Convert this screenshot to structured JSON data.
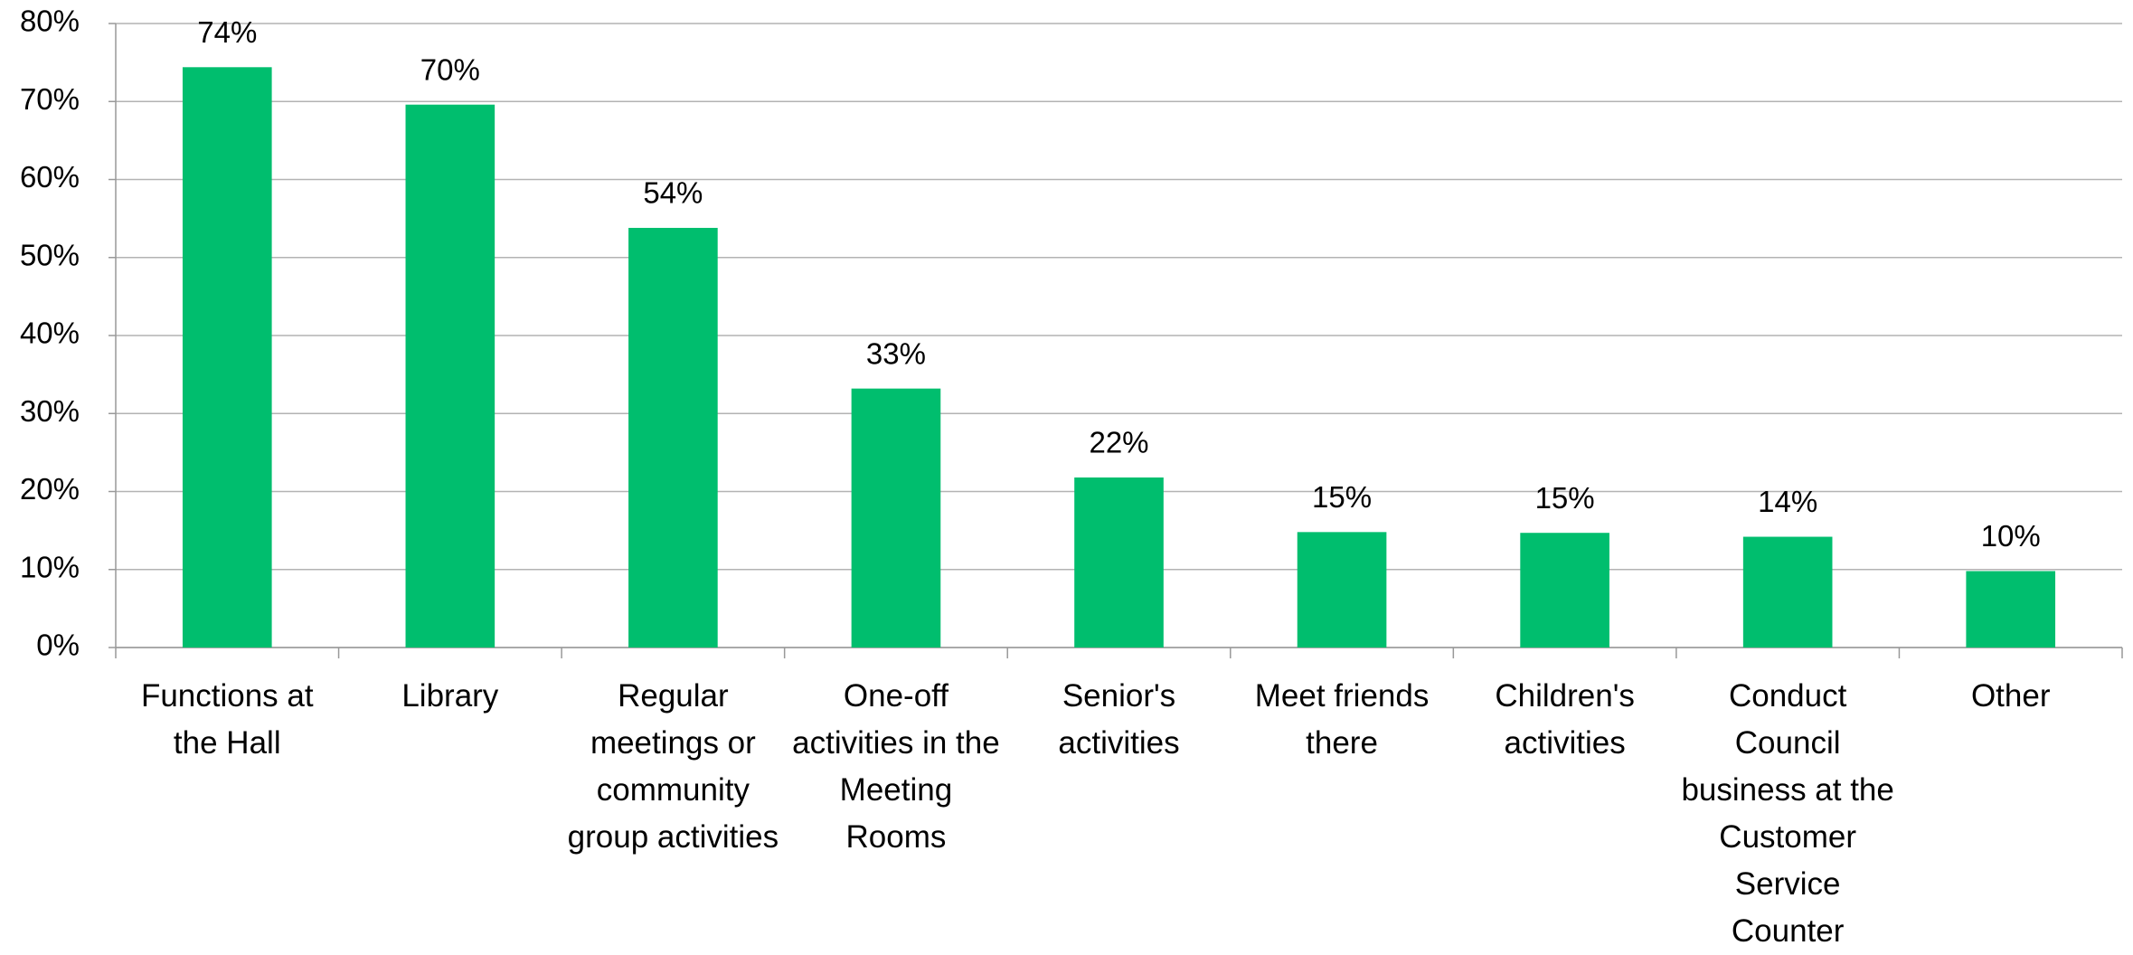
{
  "chart_data": {
    "type": "bar",
    "categories": [
      "Functions at the Hall",
      "Library",
      "Regular meetings or community group activities",
      "One-off activities in the Meeting Rooms",
      "Senior's activities",
      "Meet friends there",
      "Children's activities",
      "Conduct Council business at the Customer Service Counter",
      "Other"
    ],
    "values": [
      74.4,
      69.6,
      53.8,
      33.2,
      21.8,
      14.8,
      14.7,
      14.2,
      9.8
    ],
    "value_labels": [
      "74%",
      "70%",
      "54%",
      "33%",
      "22%",
      "15%",
      "15%",
      "14%",
      "10%"
    ],
    "color": "#00be6e",
    "ylim": [
      0,
      80
    ],
    "yticks": [
      {
        "value": 0,
        "label": "0%"
      },
      {
        "value": 10,
        "label": "10%"
      },
      {
        "value": 20,
        "label": "20%"
      },
      {
        "value": 30,
        "label": "30%"
      },
      {
        "value": 40,
        "label": "40%"
      },
      {
        "value": 50,
        "label": "50%"
      },
      {
        "value": 60,
        "label": "60%"
      },
      {
        "value": 70,
        "label": "70%"
      },
      {
        "value": 80,
        "label": "80%"
      }
    ],
    "grid": true
  }
}
